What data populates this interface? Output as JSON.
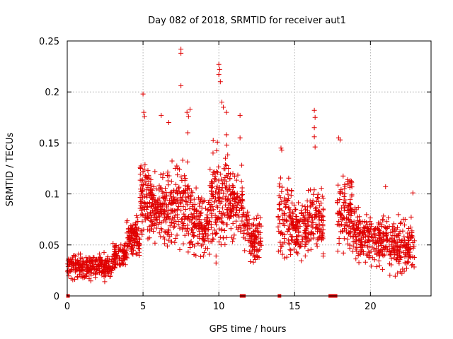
{
  "chart_data": {
    "type": "scatter",
    "title": "Day 082 of 2018, SRMTID for receiver aut1",
    "xlabel": "GPS time / hours",
    "ylabel": "SRMTID / TECUs",
    "xlim": [
      0,
      24
    ],
    "ylim": [
      0,
      0.25
    ],
    "grid": true,
    "marker": "+",
    "color": "#e00000",
    "x_ticks": [
      0,
      5,
      10,
      15,
      20
    ],
    "x_tick_labels": [
      "0",
      "5",
      "10",
      "15",
      "20"
    ],
    "y_ticks": [
      0,
      0.05,
      0.1,
      0.15,
      0.2,
      0.25
    ],
    "y_tick_labels": [
      "0",
      "0.05",
      "0.1",
      "0.15",
      "0.2",
      "0.25"
    ],
    "zero_markers_x": [
      0.05,
      11.5,
      11.65,
      14.0,
      17.35,
      17.5,
      17.7
    ],
    "outliers": [
      {
        "x": 5.0,
        "y": 0.198
      },
      {
        "x": 5.05,
        "y": 0.18
      },
      {
        "x": 5.1,
        "y": 0.176
      },
      {
        "x": 6.2,
        "y": 0.177
      },
      {
        "x": 6.7,
        "y": 0.17
      },
      {
        "x": 7.5,
        "y": 0.242
      },
      {
        "x": 7.5,
        "y": 0.238
      },
      {
        "x": 7.5,
        "y": 0.206
      },
      {
        "x": 7.9,
        "y": 0.18
      },
      {
        "x": 8.1,
        "y": 0.183
      },
      {
        "x": 8.0,
        "y": 0.176
      },
      {
        "x": 7.95,
        "y": 0.16
      },
      {
        "x": 10.0,
        "y": 0.227
      },
      {
        "x": 10.05,
        "y": 0.222
      },
      {
        "x": 10.0,
        "y": 0.217
      },
      {
        "x": 10.1,
        "y": 0.21
      },
      {
        "x": 10.2,
        "y": 0.19
      },
      {
        "x": 10.3,
        "y": 0.185
      },
      {
        "x": 10.5,
        "y": 0.18
      },
      {
        "x": 11.4,
        "y": 0.177
      },
      {
        "x": 10.5,
        "y": 0.158
      },
      {
        "x": 11.4,
        "y": 0.155
      },
      {
        "x": 16.3,
        "y": 0.182
      },
      {
        "x": 16.35,
        "y": 0.175
      },
      {
        "x": 16.3,
        "y": 0.165
      },
      {
        "x": 16.3,
        "y": 0.156
      },
      {
        "x": 16.35,
        "y": 0.146
      },
      {
        "x": 14.1,
        "y": 0.145
      },
      {
        "x": 14.15,
        "y": 0.143
      },
      {
        "x": 17.9,
        "y": 0.155
      },
      {
        "x": 18.0,
        "y": 0.153
      },
      {
        "x": 22.8,
        "y": 0.101
      },
      {
        "x": 21.0,
        "y": 0.107
      },
      {
        "x": 18.5,
        "y": 0.112
      },
      {
        "x": 18.3,
        "y": 0.109
      }
    ],
    "cluster_segments": [
      {
        "x_start": 0.0,
        "x_end": 3.0,
        "y_low": 0.012,
        "y_high": 0.045,
        "count": 260
      },
      {
        "x_start": 3.0,
        "x_end": 3.9,
        "y_low": 0.02,
        "y_high": 0.058,
        "count": 90
      },
      {
        "x_start": 3.9,
        "x_end": 4.8,
        "y_low": 0.03,
        "y_high": 0.085,
        "count": 110
      },
      {
        "x_start": 4.8,
        "x_end": 5.4,
        "y_low": 0.04,
        "y_high": 0.155,
        "count": 80
      },
      {
        "x_start": 5.4,
        "x_end": 6.6,
        "y_low": 0.04,
        "y_high": 0.13,
        "count": 150
      },
      {
        "x_start": 6.6,
        "x_end": 8.2,
        "y_low": 0.035,
        "y_high": 0.14,
        "count": 170
      },
      {
        "x_start": 8.2,
        "x_end": 9.4,
        "y_low": 0.03,
        "y_high": 0.11,
        "count": 130
      },
      {
        "x_start": 9.4,
        "x_end": 10.6,
        "y_low": 0.025,
        "y_high": 0.16,
        "count": 150
      },
      {
        "x_start": 10.6,
        "x_end": 11.6,
        "y_low": 0.045,
        "y_high": 0.135,
        "count": 110
      },
      {
        "x_start": 11.6,
        "x_end": 12.0,
        "y_low": 0.04,
        "y_high": 0.1,
        "count": 30
      },
      {
        "x_start": 12.0,
        "x_end": 12.8,
        "y_low": 0.025,
        "y_high": 0.085,
        "count": 90
      },
      {
        "x_start": 13.9,
        "x_end": 14.8,
        "y_low": 0.025,
        "y_high": 0.13,
        "count": 90
      },
      {
        "x_start": 14.8,
        "x_end": 15.8,
        "y_low": 0.03,
        "y_high": 0.1,
        "count": 110
      },
      {
        "x_start": 15.8,
        "x_end": 16.9,
        "y_low": 0.025,
        "y_high": 0.12,
        "count": 120
      },
      {
        "x_start": 17.8,
        "x_end": 18.8,
        "y_low": 0.03,
        "y_high": 0.135,
        "count": 110
      },
      {
        "x_start": 18.8,
        "x_end": 19.8,
        "y_low": 0.022,
        "y_high": 0.095,
        "count": 100
      },
      {
        "x_start": 19.8,
        "x_end": 21.2,
        "y_low": 0.02,
        "y_high": 0.09,
        "count": 140
      },
      {
        "x_start": 21.2,
        "x_end": 22.9,
        "y_low": 0.012,
        "y_high": 0.085,
        "count": 170
      }
    ]
  }
}
